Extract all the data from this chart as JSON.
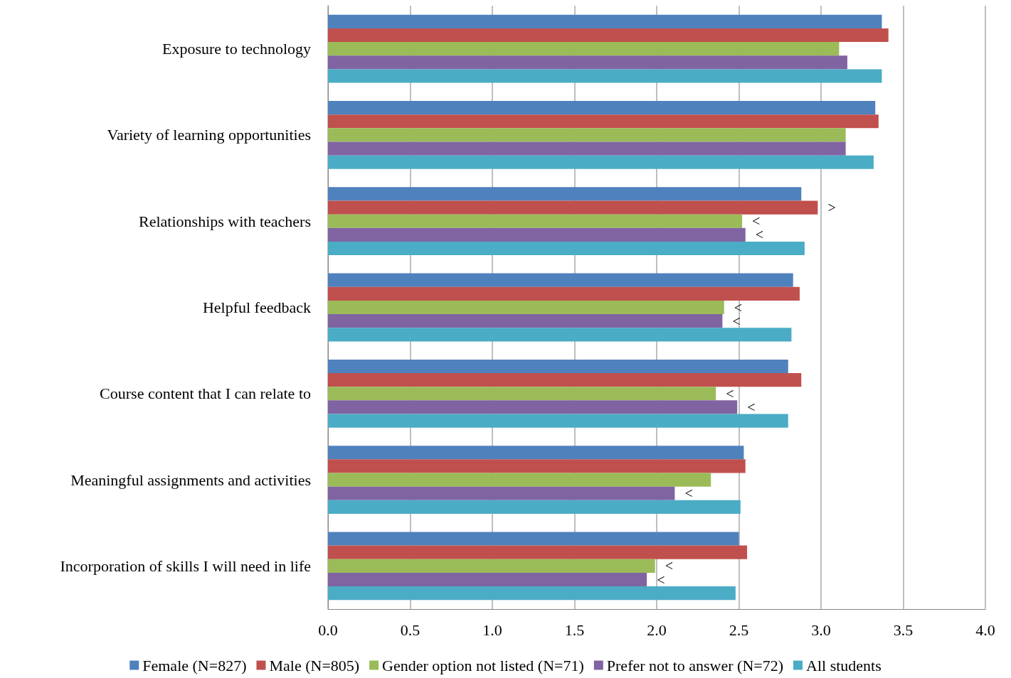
{
  "chart_data": {
    "type": "bar",
    "orientation": "horizontal",
    "categories": [
      "Exposure to technology",
      "Variety of learning opportunities",
      "Relationships with teachers",
      "Helpful feedback",
      "Course content that I can relate to",
      "Meaningful assignments and activities",
      "Incorporation of skills I will need in life"
    ],
    "series": [
      {
        "name": "Female (N=827)",
        "color": "#4f81bd",
        "values": [
          3.37,
          3.33,
          2.88,
          2.83,
          2.8,
          2.53,
          2.5
        ]
      },
      {
        "name": "Male (N=805)",
        "color": "#c0504d",
        "values": [
          3.41,
          3.35,
          2.98,
          2.87,
          2.88,
          2.54,
          2.55
        ],
        "value_labels": [
          null,
          null,
          ">",
          null,
          null,
          null,
          null
        ]
      },
      {
        "name": "Gender option not listed (N=71)",
        "color": "#9bbb59",
        "values": [
          3.11,
          3.15,
          2.52,
          2.41,
          2.36,
          2.33,
          1.99
        ],
        "value_labels": [
          null,
          null,
          "<",
          "<",
          "<",
          null,
          "<"
        ]
      },
      {
        "name": "Prefer not to answer (N=72)",
        "color": "#8064a2",
        "values": [
          3.16,
          3.15,
          2.54,
          2.4,
          2.49,
          2.11,
          1.94
        ],
        "value_labels": [
          null,
          null,
          "<",
          "<",
          "<",
          "<",
          "<"
        ]
      },
      {
        "name": "All students",
        "color": "#4bacc6",
        "values": [
          3.37,
          3.32,
          2.9,
          2.82,
          2.8,
          2.51,
          2.48
        ]
      }
    ],
    "xlim": [
      0,
      4
    ],
    "xticks": [
      {
        "value": 0,
        "label": "0.0"
      },
      0.5,
      {
        "value": 1,
        "label": "1.0"
      },
      1.5,
      {
        "value": 2,
        "label": "2.0"
      },
      2.5,
      {
        "value": 3,
        "label": "3.0"
      },
      3.5,
      {
        "value": 4,
        "label": "4.0"
      }
    ],
    "grid": "x",
    "legend": "bottom"
  }
}
